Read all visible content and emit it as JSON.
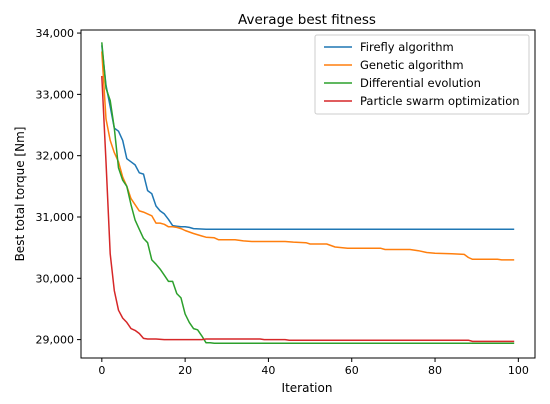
{
  "chart_data": {
    "type": "line",
    "title": "Average best fitness",
    "xlabel": "Iteration",
    "ylabel": "Best total torque [Nm]",
    "xlim": [
      -5,
      104
    ],
    "ylim": [
      28700,
      34050
    ],
    "xticks": [
      0,
      20,
      40,
      60,
      80,
      100
    ],
    "xtick_labels": [
      "0",
      "20",
      "40",
      "60",
      "80",
      "100"
    ],
    "yticks": [
      29000,
      30000,
      31000,
      32000,
      33000,
      34000
    ],
    "ytick_labels": [
      "29,000",
      "30,000",
      "31,000",
      "32,000",
      "33,000",
      "34,000"
    ],
    "grid": false,
    "legend_position": "top-right",
    "series": [
      {
        "name": "Firefly algorithm",
        "color": "#1f77b4",
        "points": [
          [
            0,
            33800
          ],
          [
            1,
            33150
          ],
          [
            2,
            32800
          ],
          [
            3,
            32450
          ],
          [
            4,
            32400
          ],
          [
            5,
            32250
          ],
          [
            6,
            31950
          ],
          [
            7,
            31900
          ],
          [
            8,
            31850
          ],
          [
            9,
            31720
          ],
          [
            10,
            31700
          ],
          [
            11,
            31430
          ],
          [
            12,
            31380
          ],
          [
            13,
            31180
          ],
          [
            14,
            31100
          ],
          [
            15,
            31050
          ],
          [
            16,
            30960
          ],
          [
            17,
            30860
          ],
          [
            18,
            30850
          ],
          [
            19,
            30840
          ],
          [
            20,
            30840
          ],
          [
            21,
            30830
          ],
          [
            22,
            30810
          ],
          [
            25,
            30800
          ],
          [
            40,
            30800
          ],
          [
            60,
            30800
          ],
          [
            80,
            30800
          ],
          [
            99,
            30800
          ]
        ]
      },
      {
        "name": "Genetic algorithm",
        "color": "#ff7f0e",
        "points": [
          [
            0,
            33700
          ],
          [
            1,
            32600
          ],
          [
            2,
            32250
          ],
          [
            3,
            32050
          ],
          [
            4,
            31900
          ],
          [
            5,
            31650
          ],
          [
            6,
            31500
          ],
          [
            7,
            31300
          ],
          [
            8,
            31200
          ],
          [
            9,
            31100
          ],
          [
            10,
            31080
          ],
          [
            11,
            31050
          ],
          [
            12,
            31020
          ],
          [
            13,
            30900
          ],
          [
            14,
            30900
          ],
          [
            15,
            30880
          ],
          [
            16,
            30840
          ],
          [
            17,
            30840
          ],
          [
            18,
            30830
          ],
          [
            19,
            30810
          ],
          [
            20,
            30780
          ],
          [
            22,
            30730
          ],
          [
            24,
            30690
          ],
          [
            25,
            30670
          ],
          [
            27,
            30660
          ],
          [
            28,
            30630
          ],
          [
            32,
            30630
          ],
          [
            34,
            30610
          ],
          [
            36,
            30600
          ],
          [
            44,
            30600
          ],
          [
            46,
            30590
          ],
          [
            49,
            30580
          ],
          [
            50,
            30560
          ],
          [
            54,
            30560
          ],
          [
            56,
            30510
          ],
          [
            59,
            30490
          ],
          [
            63,
            30490
          ],
          [
            67,
            30490
          ],
          [
            68,
            30470
          ],
          [
            74,
            30470
          ],
          [
            76,
            30450
          ],
          [
            78,
            30420
          ],
          [
            80,
            30410
          ],
          [
            84,
            30400
          ],
          [
            87,
            30390
          ],
          [
            88,
            30340
          ],
          [
            89,
            30310
          ],
          [
            95,
            30310
          ],
          [
            96,
            30300
          ],
          [
            99,
            30300
          ]
        ]
      },
      {
        "name": "Differential evolution",
        "color": "#2ca02c",
        "points": [
          [
            0,
            33850
          ],
          [
            1,
            33100
          ],
          [
            2,
            32900
          ],
          [
            3,
            32450
          ],
          [
            4,
            31800
          ],
          [
            5,
            31600
          ],
          [
            6,
            31500
          ],
          [
            7,
            31200
          ],
          [
            8,
            30950
          ],
          [
            9,
            30800
          ],
          [
            10,
            30650
          ],
          [
            11,
            30580
          ],
          [
            12,
            30300
          ],
          [
            13,
            30230
          ],
          [
            14,
            30150
          ],
          [
            15,
            30050
          ],
          [
            16,
            29950
          ],
          [
            17,
            29950
          ],
          [
            18,
            29750
          ],
          [
            19,
            29680
          ],
          [
            20,
            29420
          ],
          [
            21,
            29280
          ],
          [
            22,
            29180
          ],
          [
            23,
            29160
          ],
          [
            24,
            29060
          ],
          [
            25,
            28950
          ],
          [
            26,
            28950
          ],
          [
            27,
            28940
          ],
          [
            30,
            28940
          ],
          [
            40,
            28940
          ],
          [
            60,
            28940
          ],
          [
            80,
            28940
          ],
          [
            99,
            28940
          ]
        ]
      },
      {
        "name": "Particle swarm optimization",
        "color": "#d62728",
        "points": [
          [
            0,
            33300
          ],
          [
            1,
            31900
          ],
          [
            2,
            30400
          ],
          [
            3,
            29800
          ],
          [
            4,
            29480
          ],
          [
            5,
            29350
          ],
          [
            6,
            29280
          ],
          [
            7,
            29180
          ],
          [
            8,
            29150
          ],
          [
            9,
            29100
          ],
          [
            10,
            29020
          ],
          [
            11,
            29010
          ],
          [
            13,
            29010
          ],
          [
            15,
            29000
          ],
          [
            20,
            29000
          ],
          [
            24,
            29000
          ],
          [
            25,
            29010
          ],
          [
            30,
            29010
          ],
          [
            38,
            29010
          ],
          [
            39,
            29000
          ],
          [
            44,
            29000
          ],
          [
            45,
            28990
          ],
          [
            60,
            28990
          ],
          [
            80,
            28990
          ],
          [
            88,
            28990
          ],
          [
            89,
            28970
          ],
          [
            99,
            28970
          ]
        ]
      }
    ]
  }
}
